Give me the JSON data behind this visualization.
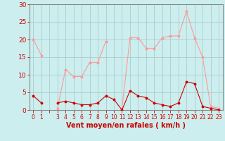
{
  "x_labels": [
    "0",
    "1",
    "",
    "3",
    "4",
    "5",
    "6",
    "7",
    "8",
    "9",
    "10",
    "11",
    "12",
    "13",
    "14",
    "15",
    "16",
    "17",
    "18",
    "19",
    "20",
    "21",
    "22",
    "23"
  ],
  "x_values": [
    0,
    1,
    2,
    3,
    4,
    5,
    6,
    7,
    8,
    9,
    10,
    11,
    12,
    13,
    14,
    15,
    16,
    17,
    18,
    19,
    20,
    21,
    22,
    23
  ],
  "avg_wind": [
    4,
    2,
    null,
    2,
    2.5,
    2,
    1.5,
    1.5,
    2,
    4,
    3,
    0,
    5.5,
    4,
    3.5,
    2,
    1.5,
    1,
    2,
    8,
    7.5,
    1,
    0.5,
    0
  ],
  "gust_wind": [
    20,
    15.5,
    null,
    0.5,
    11.5,
    9.5,
    9.5,
    13.5,
    13.5,
    19.5,
    null,
    0.5,
    20.5,
    20.5,
    17.5,
    17.5,
    20.5,
    21,
    21,
    28,
    20.5,
    15,
    1,
    0.5
  ],
  "avg_color": "#cc0000",
  "gust_color": "#ff9999",
  "bg_color": "#cceeee",
  "grid_color": "#aacccc",
  "xlabel": "Vent moyen/en rafales ( km/h )",
  "ylim": [
    0,
    30
  ],
  "yticks": [
    0,
    5,
    10,
    15,
    20,
    25,
    30
  ],
  "ytick_labels": [
    "0",
    "5",
    "10",
    "15",
    "20",
    "25",
    "30"
  ]
}
